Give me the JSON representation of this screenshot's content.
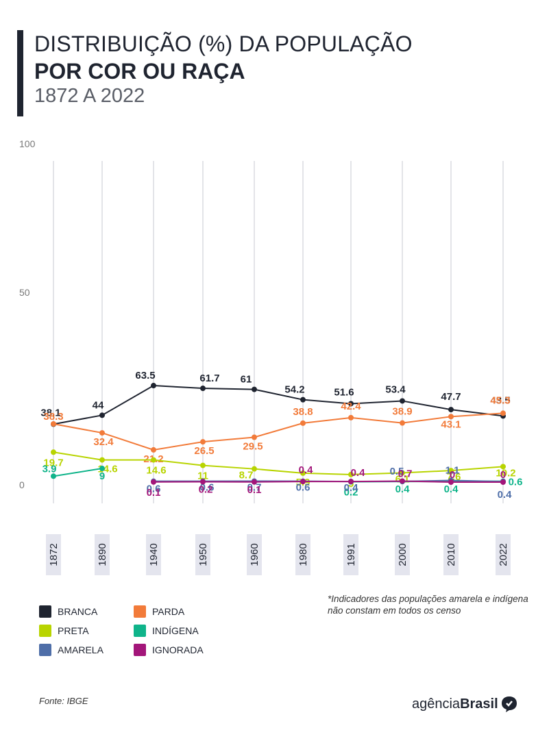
{
  "header": {
    "line1": "DISTRIBUIÇÃO  (%) DA POPULAÇÃO",
    "line2": "POR COR OU RAÇA",
    "line3": "1872 A 2022"
  },
  "chart_data": {
    "type": "line",
    "categories": [
      "1872",
      "1890",
      "1940",
      "1950",
      "1960",
      "1980",
      "1991",
      "2000",
      "2010",
      "2022"
    ],
    "y_ticks": [
      "100",
      "50",
      "0"
    ],
    "ylim": [
      0,
      100
    ],
    "grid": "vertical",
    "series": [
      {
        "name": "BRANCA",
        "color": "#1f2430",
        "values": [
          38.1,
          44,
          63.5,
          61.7,
          61,
          54.2,
          51.6,
          53.4,
          47.7,
          43.5
        ],
        "labels": [
          "38.1",
          "44",
          "63.5",
          "61.7",
          "61",
          "54.2",
          "51.6",
          "53.4",
          "47.7",
          "43.5"
        ]
      },
      {
        "name": "PARDA",
        "color": "#f27b3a",
        "values": [
          38.3,
          32.4,
          21.2,
          26.5,
          29.5,
          38.8,
          42.4,
          38.9,
          43.1,
          45.3
        ],
        "labels": [
          "38.3",
          "32.4",
          "21.2",
          "26.5",
          "29.5",
          "38.8",
          "42.4",
          "38.9",
          "43.1",
          "45.3"
        ]
      },
      {
        "name": "PRETA",
        "color": "#b8d400",
        "values": [
          19.7,
          14.6,
          14.6,
          11,
          8.7,
          5.9,
          5,
          6.1,
          7.6,
          10.2
        ],
        "labels": [
          "19.7",
          "14.6",
          "14.6",
          "11",
          "8.7",
          "5.9",
          "5",
          "6.1",
          "7.6",
          "10.2"
        ]
      },
      {
        "name": "INDÍGENA",
        "color": "#0fb48a",
        "values": [
          3.9,
          9,
          null,
          null,
          null,
          null,
          0.2,
          0.4,
          0.4,
          0.6
        ],
        "labels": [
          "3.9",
          "9",
          null,
          null,
          null,
          null,
          "0.2",
          "0.4",
          "0.4",
          "0.6"
        ]
      },
      {
        "name": "AMARELA",
        "color": "#4e6ea8",
        "values": [
          null,
          null,
          0.6,
          0.6,
          0.7,
          0.6,
          0.4,
          0.5,
          1.1,
          0.4
        ],
        "labels": [
          null,
          null,
          "0.6",
          "0.6",
          "0.7",
          "0.6",
          "0.4",
          "0.5",
          "1.1",
          "0.4"
        ]
      },
      {
        "name": "IGNORADA",
        "color": "#a3167a",
        "values": [
          null,
          null,
          0.1,
          0.2,
          0.1,
          0.4,
          0.4,
          0.7,
          0,
          0
        ],
        "labels": [
          null,
          null,
          "0.1",
          "0.2",
          "0.1",
          "0.4",
          "0.4",
          "0.7",
          "0",
          "0"
        ]
      }
    ]
  },
  "legend": {
    "items": [
      {
        "name": "BRANCA",
        "color": "#1f2430"
      },
      {
        "name": "PARDA",
        "color": "#f27b3a"
      },
      {
        "name": "PRETA",
        "color": "#b8d400"
      },
      {
        "name": "INDÍGENA",
        "color": "#0fb48a"
      },
      {
        "name": "AMARELA",
        "color": "#4e6ea8"
      },
      {
        "name": "IGNORADA",
        "color": "#a3167a"
      }
    ]
  },
  "note": "*Indicadores das populações amarela e indígena não constam em todos os censo",
  "source": "Fonte: IBGE",
  "brand": {
    "prefix": "agência",
    "bold": "Brasil"
  }
}
